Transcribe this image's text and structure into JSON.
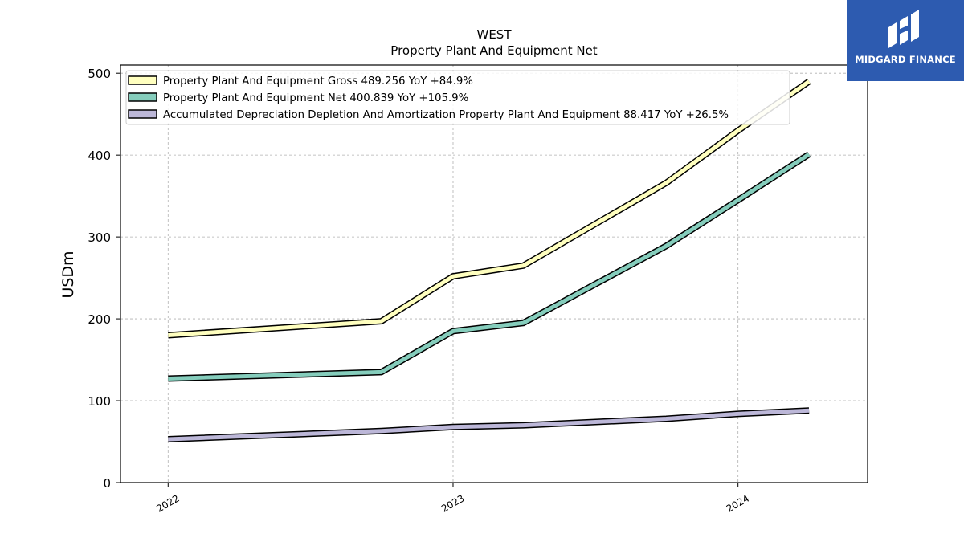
{
  "chart_data": {
    "type": "line",
    "title": "WEST",
    "subtitle": "Property Plant And Equipment Net",
    "ylabel": "USDm",
    "xlabel": "",
    "ylim": [
      0,
      510
    ],
    "yticks": [
      0,
      100,
      200,
      300,
      400,
      500
    ],
    "xlim": [
      "2021-11-01",
      "2024-06-15"
    ],
    "xticks": [
      "2022-01-01",
      "2023-01-01",
      "2024-01-01"
    ],
    "xtick_labels": [
      "2022",
      "2023",
      "2024"
    ],
    "grid": true,
    "legend_position": "top-left",
    "x": [
      "2022-01-01",
      "2022-10-01",
      "2023-01-01",
      "2023-04-01",
      "2023-10-01",
      "2024-01-01",
      "2024-04-01"
    ],
    "series": [
      {
        "name": "Property Plant And Equipment Gross",
        "legend_label": "Property Plant And Equipment Gross  489.256 YoY +84.9%",
        "color": "#ffffbf",
        "values": [
          180,
          197,
          252,
          265,
          366,
          430,
          490
        ]
      },
      {
        "name": "Property Plant And Equipment Net",
        "legend_label": "Property Plant And Equipment Net  400.839 YoY +105.9%",
        "color": "#85cdbc",
        "values": [
          127,
          135,
          185,
          195,
          289,
          345,
          401
        ]
      },
      {
        "name": "Accumulated Depreciation Depletion And Amortization Property Plant And Equipment",
        "legend_label": "Accumulated Depreciation Depletion And Amortization Property Plant And Equipment  88.417 YoY +26.5%",
        "color": "#bcb7d8",
        "values": [
          53,
          63,
          68,
          70,
          78,
          84,
          88
        ]
      }
    ]
  },
  "branding": {
    "logo_text": "MIDGARD FINANCE",
    "logo_color": "#2d5bb0"
  }
}
